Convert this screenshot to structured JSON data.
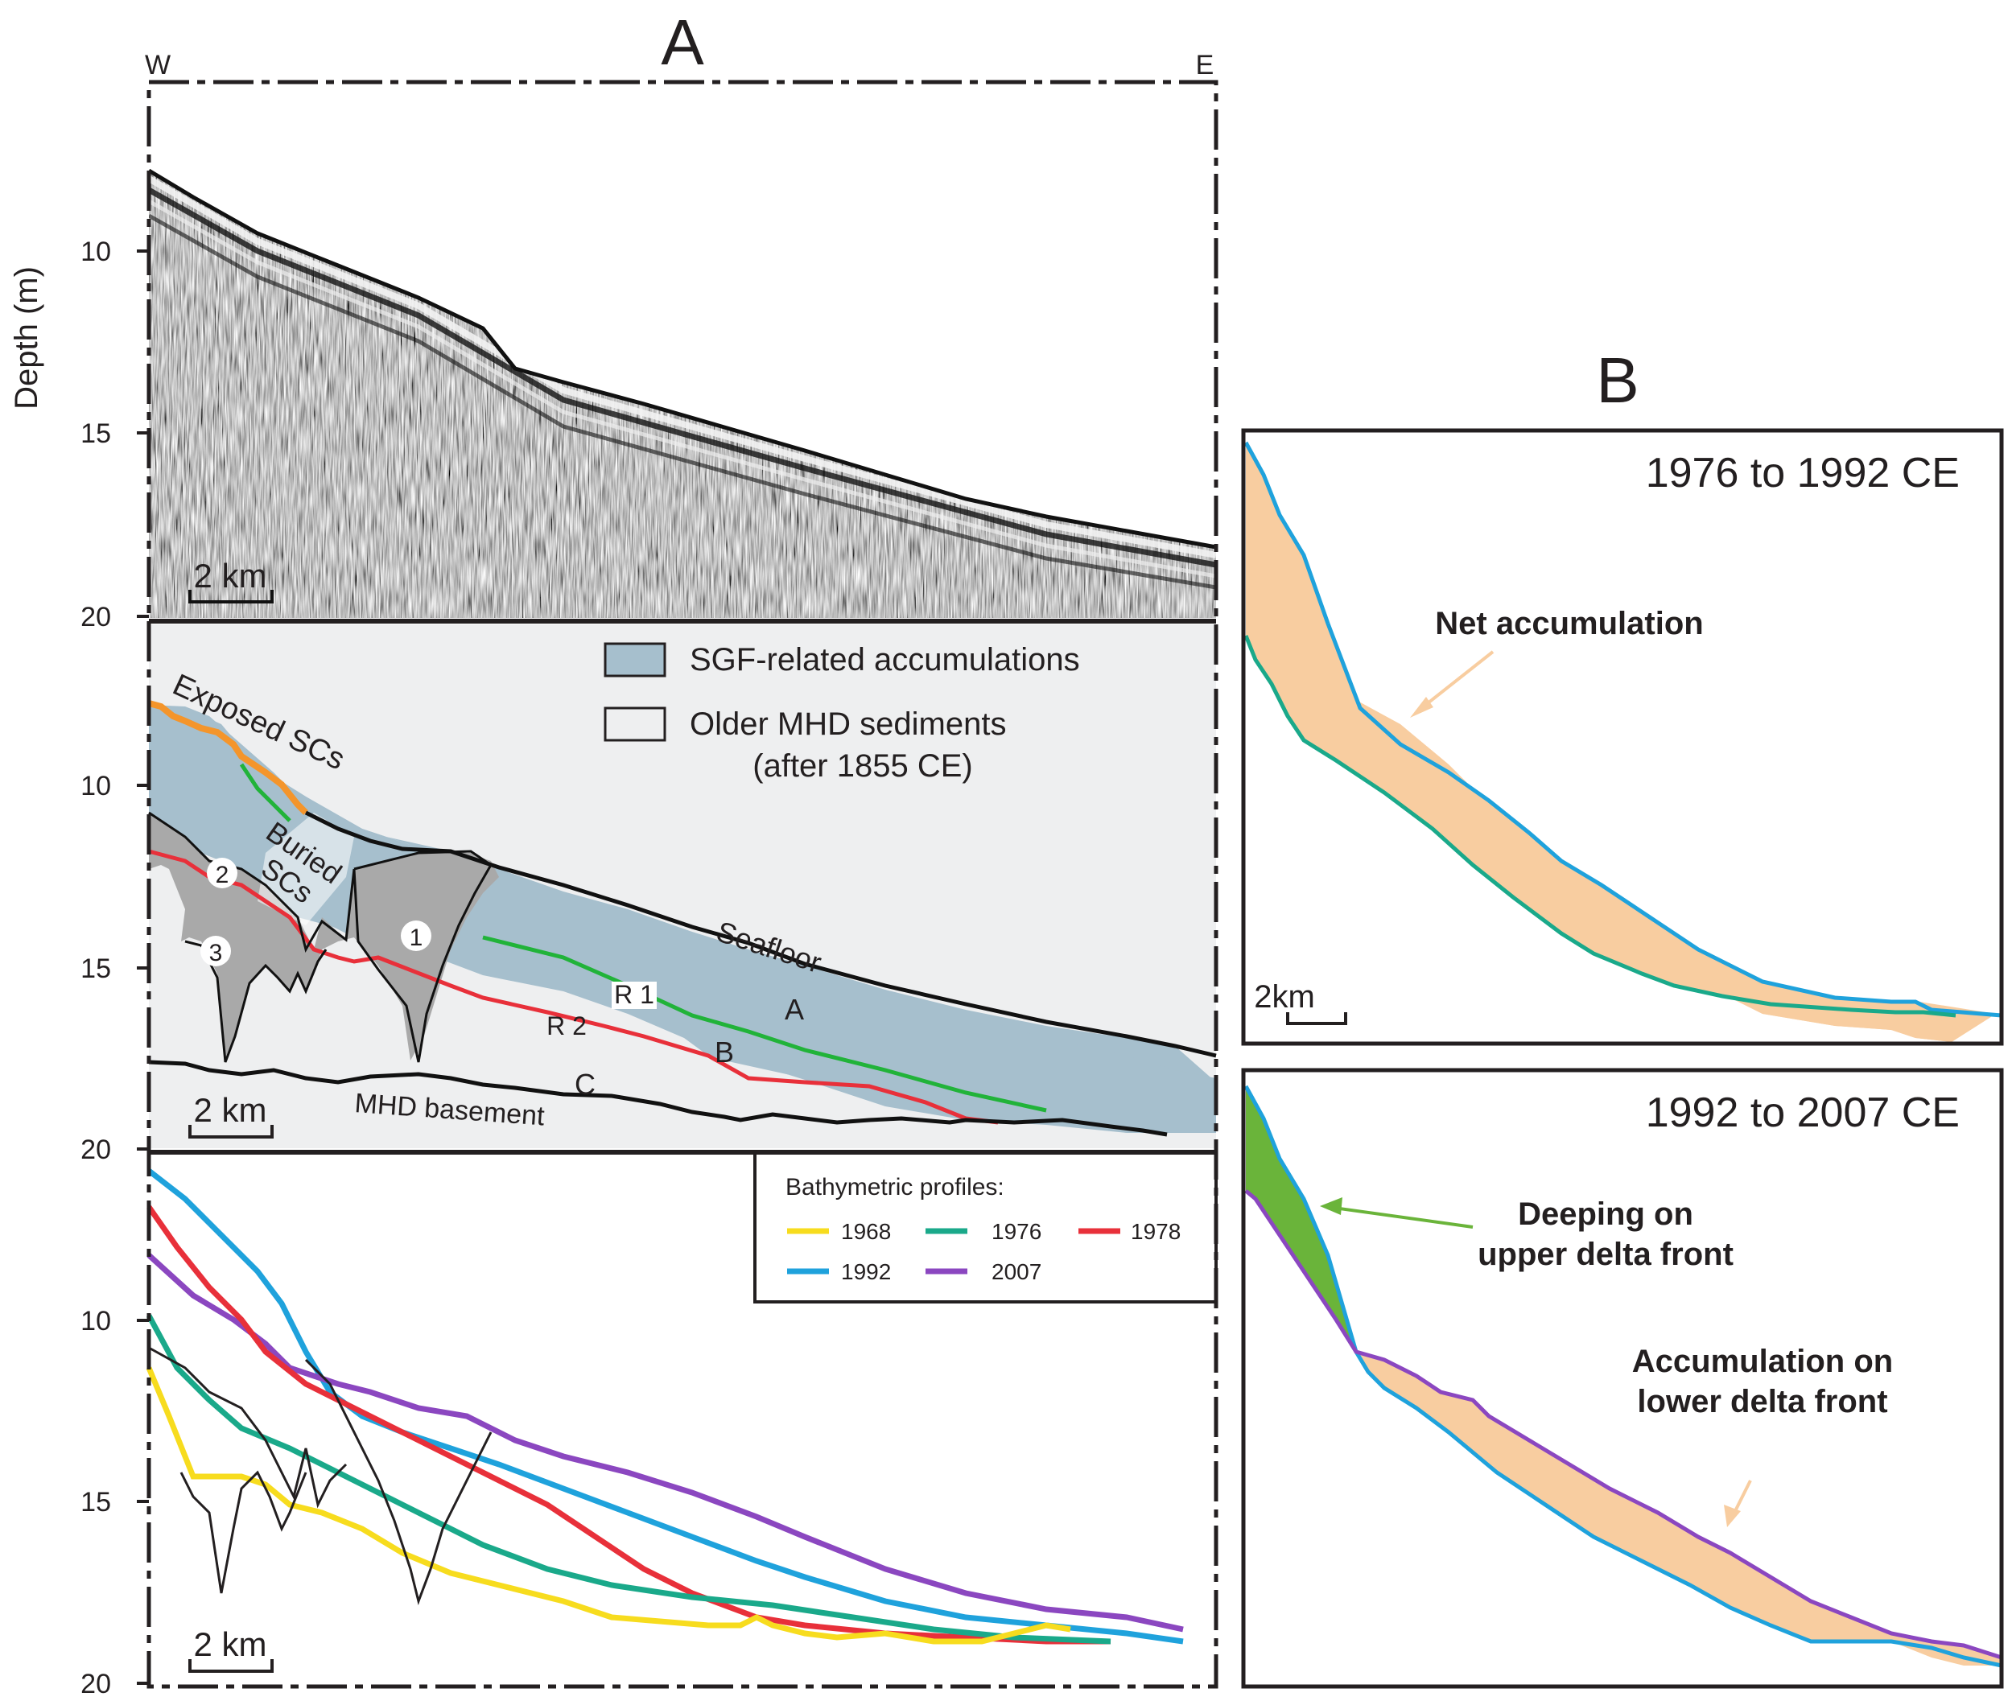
{
  "panel_a": {
    "label": "A",
    "west": "W",
    "east": "E",
    "ylabel": "Depth (m)",
    "ticks": [
      "10",
      "15",
      "20"
    ],
    "scale": "2 km",
    "legend": {
      "sgf": "SGF-related accumulations",
      "older1": "Older MHD sediments",
      "older2": "(after 1855 CE)"
    },
    "annotations": {
      "exposed": "Exposed  SCs",
      "buried1": "Buried",
      "buried2": "SCs",
      "c1": "1",
      "c2": "2",
      "c3": "3",
      "seafloor": "Seafloor",
      "r1": "R 1",
      "r2": "R 2",
      "ua": "A",
      "ub": "B",
      "uc": "C",
      "basement": "MHD  basement"
    },
    "bathy_legend": {
      "title": "Bathymetric profiles:",
      "entries": [
        {
          "year": "1968",
          "color": "#f7dc1e"
        },
        {
          "year": "1976",
          "color": "#1aa98a"
        },
        {
          "year": "1978",
          "color": "#e8303a"
        },
        {
          "year": "1992",
          "color": "#1fa2dc"
        },
        {
          "year": "2007",
          "color": "#8b47c0"
        }
      ]
    }
  },
  "panel_b": {
    "label": "B",
    "top": {
      "title": "1976 to 1992 CE",
      "note": "Net accumulation",
      "scale": "2km"
    },
    "bottom": {
      "title": "1992 to 2007 CE",
      "deep1": "Deeping on",
      "deep2": "upper delta front",
      "acc1": "Accumulation  on",
      "acc2": "lower delta front"
    }
  },
  "colors": {
    "sgf": "#a6bfcd",
    "older": "#eeeff0",
    "canyon": "#a9a9a9",
    "exposed": "#f4952b",
    "r1": "#21b339",
    "r2": "#e8303a",
    "accum": "#f8cda0",
    "deep": "#6ab43a",
    "title_red": "#e8181f"
  }
}
